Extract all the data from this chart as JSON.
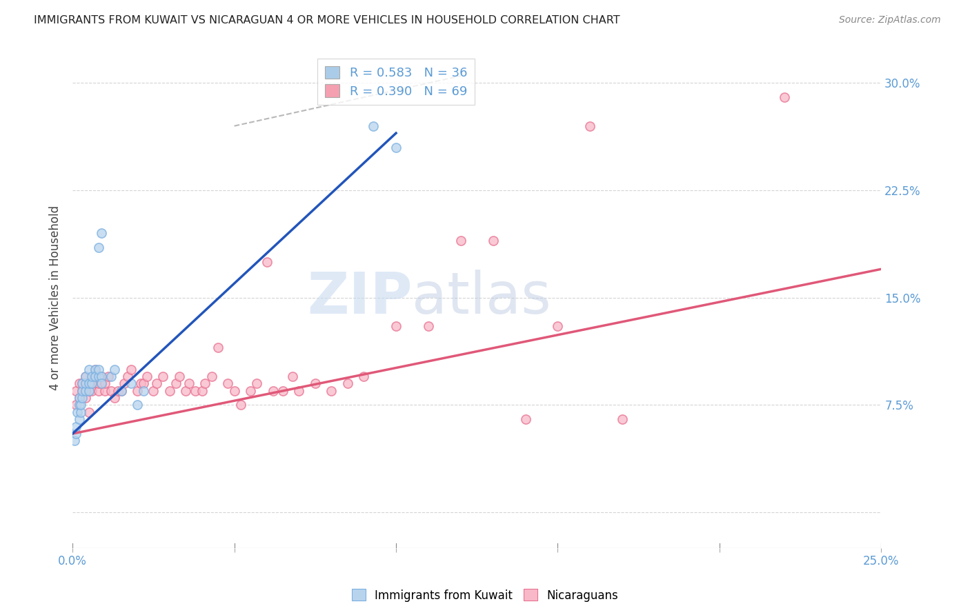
{
  "title": "IMMIGRANTS FROM KUWAIT VS NICARAGUAN 4 OR MORE VEHICLES IN HOUSEHOLD CORRELATION CHART",
  "source": "Source: ZipAtlas.com",
  "ylabel": "4 or more Vehicles in Household",
  "xlim": [
    0.0,
    0.25
  ],
  "ylim": [
    -0.025,
    0.325
  ],
  "yticks": [
    0.0,
    0.075,
    0.15,
    0.225,
    0.3
  ],
  "ytick_labels": [
    "",
    "7.5%",
    "15.0%",
    "22.5%",
    "30.0%"
  ],
  "xticks": [
    0.0,
    0.05,
    0.1,
    0.15,
    0.2,
    0.25
  ],
  "xtick_labels": [
    "0.0%",
    "",
    "",
    "",
    "",
    "25.0%"
  ],
  "legend_entries": [
    {
      "label": "R = 0.583   N = 36",
      "color": "#aacce8"
    },
    {
      "label": "R = 0.390   N = 69",
      "color": "#f4a0b0"
    }
  ],
  "watermark_zip": "ZIP",
  "watermark_atlas": "atlas",
  "background_color": "#ffffff",
  "grid_color": "#d0d0d0",
  "axis_label_color": "#5b9bd5",
  "kuwait_fill": "#b8d4ed",
  "kuwait_edge": "#7aafe0",
  "nicaraguan_fill": "#f8b8c8",
  "nicaraguan_edge": "#e87090",
  "kuwait_line_color": "#2255bb",
  "nicaraguan_line_color": "#e05878",
  "dashed_line_color": "#b8b8b8",
  "scatter_alpha": 0.75,
  "scatter_size": 90,
  "kuwait_points_x": [
    0.0005,
    0.001,
    0.001,
    0.0015,
    0.002,
    0.002,
    0.002,
    0.0025,
    0.0025,
    0.003,
    0.003,
    0.003,
    0.004,
    0.004,
    0.004,
    0.005,
    0.005,
    0.005,
    0.006,
    0.006,
    0.007,
    0.007,
    0.008,
    0.008,
    0.009,
    0.009,
    0.012,
    0.013,
    0.015,
    0.018,
    0.02,
    0.022,
    0.093,
    0.1,
    0.008,
    0.009
  ],
  "kuwait_points_y": [
    0.05,
    0.055,
    0.06,
    0.07,
    0.065,
    0.075,
    0.08,
    0.07,
    0.075,
    0.08,
    0.085,
    0.09,
    0.085,
    0.09,
    0.095,
    0.085,
    0.09,
    0.1,
    0.09,
    0.095,
    0.1,
    0.095,
    0.095,
    0.1,
    0.095,
    0.09,
    0.095,
    0.1,
    0.085,
    0.09,
    0.075,
    0.085,
    0.27,
    0.255,
    0.185,
    0.195
  ],
  "nicaraguan_points_x": [
    0.001,
    0.001,
    0.002,
    0.002,
    0.003,
    0.003,
    0.004,
    0.004,
    0.005,
    0.005,
    0.005,
    0.006,
    0.006,
    0.007,
    0.007,
    0.008,
    0.008,
    0.009,
    0.009,
    0.01,
    0.01,
    0.011,
    0.012,
    0.013,
    0.014,
    0.015,
    0.016,
    0.017,
    0.018,
    0.02,
    0.021,
    0.022,
    0.023,
    0.025,
    0.026,
    0.028,
    0.03,
    0.032,
    0.033,
    0.035,
    0.036,
    0.038,
    0.04,
    0.041,
    0.043,
    0.045,
    0.048,
    0.05,
    0.052,
    0.055,
    0.057,
    0.06,
    0.062,
    0.065,
    0.068,
    0.07,
    0.075,
    0.08,
    0.085,
    0.09,
    0.1,
    0.11,
    0.12,
    0.13,
    0.14,
    0.15,
    0.16,
    0.17,
    0.22
  ],
  "nicaraguan_points_y": [
    0.075,
    0.085,
    0.08,
    0.09,
    0.085,
    0.09,
    0.08,
    0.095,
    0.07,
    0.085,
    0.09,
    0.085,
    0.09,
    0.095,
    0.1,
    0.085,
    0.09,
    0.09,
    0.095,
    0.085,
    0.09,
    0.095,
    0.085,
    0.08,
    0.085,
    0.085,
    0.09,
    0.095,
    0.1,
    0.085,
    0.09,
    0.09,
    0.095,
    0.085,
    0.09,
    0.095,
    0.085,
    0.09,
    0.095,
    0.085,
    0.09,
    0.085,
    0.085,
    0.09,
    0.095,
    0.115,
    0.09,
    0.085,
    0.075,
    0.085,
    0.09,
    0.175,
    0.085,
    0.085,
    0.095,
    0.085,
    0.09,
    0.085,
    0.09,
    0.095,
    0.13,
    0.13,
    0.19,
    0.19,
    0.065,
    0.13,
    0.27,
    0.065,
    0.29
  ],
  "kuwait_line_x": [
    0.0,
    0.1
  ],
  "kuwait_line_y": [
    0.055,
    0.265
  ],
  "nicaraguan_line_x": [
    0.0,
    0.25
  ],
  "nicaraguan_line_y": [
    0.055,
    0.17
  ],
  "dashed_line_x": [
    0.05,
    0.12
  ],
  "dashed_line_y": [
    0.27,
    0.305
  ]
}
